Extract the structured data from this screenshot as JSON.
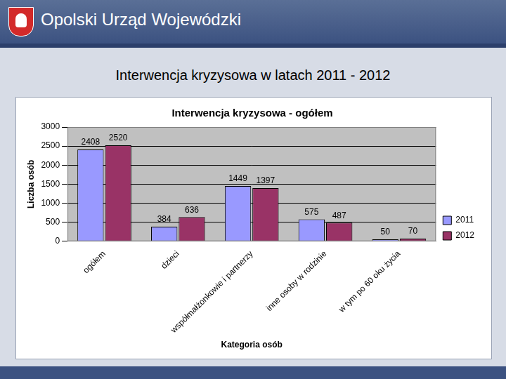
{
  "header": {
    "title": "Opolski Urząd Wojewódzki"
  },
  "slide_title": "Interwencja kryzysowa w latach 2011 - 2012",
  "chart_data": {
    "type": "bar",
    "title": "Interwencja kryzysowa - ogółem",
    "x_label": "Kategoria osób",
    "y_label": "Liczba osób",
    "categories": [
      "ogółem",
      "dzieci",
      "współmałżonkowie i partnerzy",
      "inne osoby w rodzinie",
      "w tym po 60 oku życia"
    ],
    "series": [
      {
        "name": "2011",
        "color": "#9999ff",
        "values": [
          2408,
          384,
          1449,
          575,
          50
        ]
      },
      {
        "name": "2012",
        "color": "#993366",
        "values": [
          2520,
          636,
          1397,
          487,
          70
        ]
      }
    ],
    "ylim": [
      0,
      3000
    ],
    "yticks": [
      0,
      500,
      1000,
      1500,
      2000,
      2500,
      3000
    ],
    "grid": true,
    "legend": "right",
    "data_labels": true
  }
}
